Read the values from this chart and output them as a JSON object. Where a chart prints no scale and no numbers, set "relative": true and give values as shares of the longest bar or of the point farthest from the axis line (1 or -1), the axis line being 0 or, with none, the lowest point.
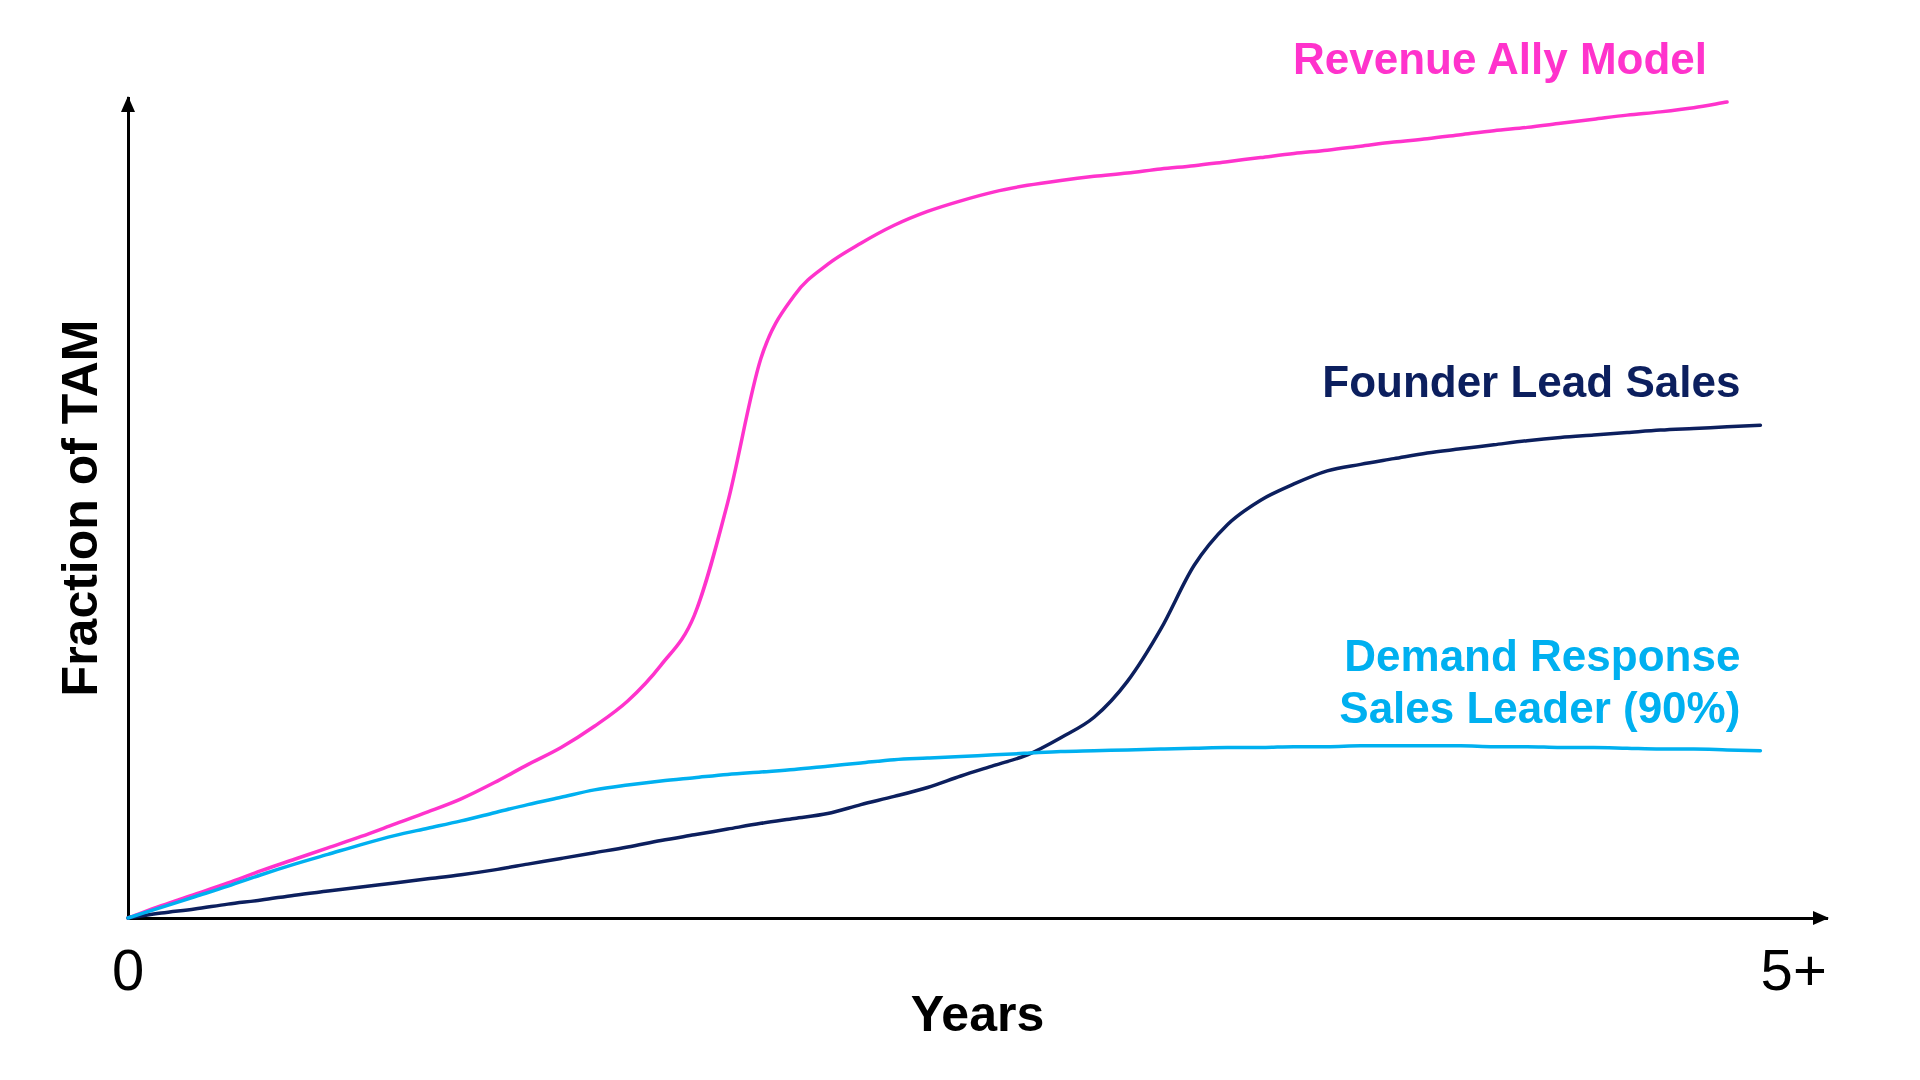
{
  "chart_data": {
    "type": "line",
    "xlabel": "Years",
    "ylabel": "Fraction of TAM",
    "relative": true,
    "categories": [
      "0",
      null,
      null,
      null,
      null,
      null,
      null,
      null,
      null,
      null,
      null,
      null,
      null,
      null,
      null,
      null,
      null,
      null,
      null,
      null,
      null,
      null,
      null,
      null,
      null,
      null,
      null,
      null,
      null,
      null,
      null,
      null,
      null,
      null,
      null,
      null,
      null,
      null,
      null,
      null,
      null,
      null,
      null,
      null,
      null,
      null,
      null,
      null,
      null,
      null,
      "5+",
      null
    ],
    "series": [
      {
        "name": "Revenue Ally Model",
        "color": "#ff33cc",
        "values": [
          0,
          0.015,
          0.029,
          0.043,
          0.058,
          0.072,
          0.086,
          0.1,
          0.115,
          0.13,
          0.146,
          0.166,
          0.188,
          0.209,
          0.235,
          0.266,
          0.31,
          0.371,
          0.509,
          0.686,
          0.763,
          0.801,
          0.827,
          0.849,
          0.866,
          0.879,
          0.89,
          0.898,
          0.904,
          0.909,
          0.913,
          0.918,
          0.922,
          0.927,
          0.932,
          0.937,
          0.941,
          0.946,
          0.951,
          0.955,
          0.96,
          0.965,
          0.969,
          0.974,
          0.979,
          0.984,
          0.988,
          0.993,
          1,
          null,
          null,
          null
        ]
      },
      {
        "name": "Founder Lead Sales",
        "color": "#0c1f5e",
        "values": [
          0,
          0.006,
          0.011,
          0.017,
          0.022,
          0.028,
          0.033,
          0.038,
          0.043,
          0.048,
          0.053,
          0.059,
          0.066,
          0.073,
          0.08,
          0.087,
          0.095,
          0.102,
          0.109,
          0.116,
          0.122,
          0.128,
          0.139,
          0.149,
          0.16,
          0.174,
          0.187,
          0.2,
          0.221,
          0.246,
          0.29,
          0.354,
          0.432,
          0.482,
          0.512,
          0.532,
          0.548,
          0.556,
          0.563,
          0.57,
          0.575,
          0.58,
          0.585,
          0.589,
          0.592,
          0.595,
          0.598,
          0.6,
          0.602,
          0.604,
          null,
          null
        ]
      },
      {
        "name": "Demand Response Sales Leader (90%)",
        "color": "#00b0f0",
        "values": [
          0,
          0.013,
          0.026,
          0.039,
          0.053,
          0.066,
          0.078,
          0.09,
          0.101,
          0.11,
          0.119,
          0.129,
          0.139,
          0.148,
          0.157,
          0.163,
          0.168,
          0.172,
          0.176,
          0.179,
          0.182,
          0.186,
          0.19,
          0.194,
          0.196,
          0.198,
          0.2,
          0.202,
          0.204,
          0.205,
          0.206,
          0.207,
          0.208,
          0.209,
          0.209,
          0.21,
          0.21,
          0.211,
          0.211,
          0.211,
          0.211,
          0.21,
          0.21,
          0.209,
          0.209,
          0.208,
          0.207,
          0.207,
          0.206,
          0.205,
          null,
          null
        ]
      }
    ]
  }
}
